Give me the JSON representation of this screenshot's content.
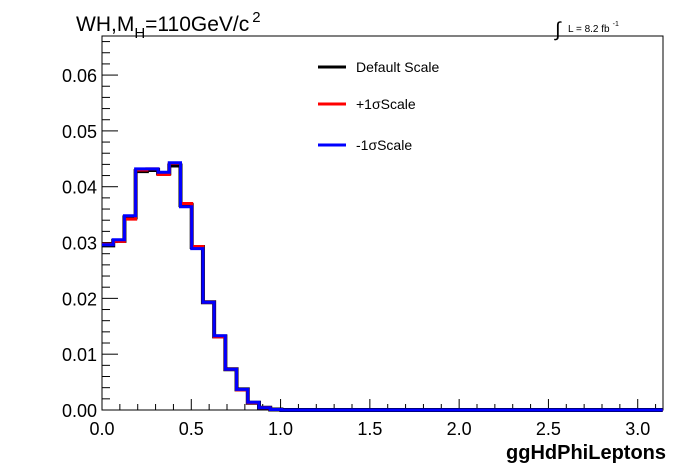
{
  "title_html": {
    "main": "WH,M",
    "sub": "H",
    "rest": "=110GeV/c",
    "sup": "2"
  },
  "luminosity": {
    "integral_symbol": "∫",
    "text": "L = 8.2 fb",
    "sup": "-1"
  },
  "chart_data": {
    "type": "line",
    "xlabel": "ggHdPhiLeptons",
    "ylabel": "",
    "xlim": [
      0,
      3.14159
    ],
    "ylim": [
      0,
      0.067
    ],
    "x_ticks": [
      0.0,
      0.5,
      1.0,
      1.5,
      2.0,
      2.5,
      3.0
    ],
    "x_tick_labels": [
      "0.0",
      "0.5",
      "1.0",
      "1.5",
      "2.0",
      "2.5",
      "3.0"
    ],
    "y_ticks": [
      0.0,
      0.01,
      0.02,
      0.03,
      0.04,
      0.05,
      0.06
    ],
    "y_tick_labels": [
      "0.00",
      "0.01",
      "0.02",
      "0.03",
      "0.04",
      "0.05",
      "0.06"
    ],
    "grid": false,
    "legend_position": "top-center",
    "bin_count": 50,
    "bin_width": 0.0628,
    "series": [
      {
        "name": "Default Scale",
        "color": "#000000",
        "values": [
          0.0295,
          0.0303,
          0.0345,
          0.0428,
          0.043,
          0.0424,
          0.0438,
          0.0367,
          0.0292,
          0.0193,
          0.0132,
          0.0073,
          0.0037,
          0.0013,
          0.0004,
          0.0001,
          0,
          0,
          0,
          0,
          0,
          0,
          0,
          0,
          0,
          0,
          0,
          0,
          0,
          0,
          0,
          0,
          0,
          0,
          0,
          0,
          0,
          0,
          0,
          0,
          0,
          0,
          0,
          0,
          0,
          0,
          0,
          0,
          0,
          0
        ]
      },
      {
        "name": "+1σScale",
        "color": "#ff0000",
        "values": [
          0.0297,
          0.0302,
          0.0342,
          0.043,
          0.0432,
          0.0422,
          0.0442,
          0.037,
          0.0293,
          0.0193,
          0.0131,
          0.0073,
          0.0036,
          0.0013,
          0.0004,
          0.0001,
          0,
          0,
          0,
          0,
          0,
          0,
          0,
          0,
          0,
          0,
          0,
          0,
          0,
          0,
          0,
          0,
          0,
          0,
          0,
          0,
          0,
          0,
          0,
          0,
          0,
          0,
          0,
          0,
          0,
          0,
          0,
          0,
          0,
          0
        ]
      },
      {
        "name": "-1σScale",
        "color": "#0000ff",
        "values": [
          0.0296,
          0.0305,
          0.0348,
          0.0432,
          0.0432,
          0.0426,
          0.0443,
          0.0364,
          0.0289,
          0.0193,
          0.0133,
          0.0073,
          0.0037,
          0.0014,
          0.0004,
          0.0001,
          0,
          0,
          0,
          0,
          0,
          0,
          0,
          0,
          0,
          0,
          0,
          0,
          0,
          0,
          0,
          0,
          0,
          0,
          0,
          0,
          0,
          0,
          0,
          0,
          0,
          0,
          0,
          0,
          0,
          0,
          0,
          0,
          0,
          0
        ]
      }
    ]
  }
}
